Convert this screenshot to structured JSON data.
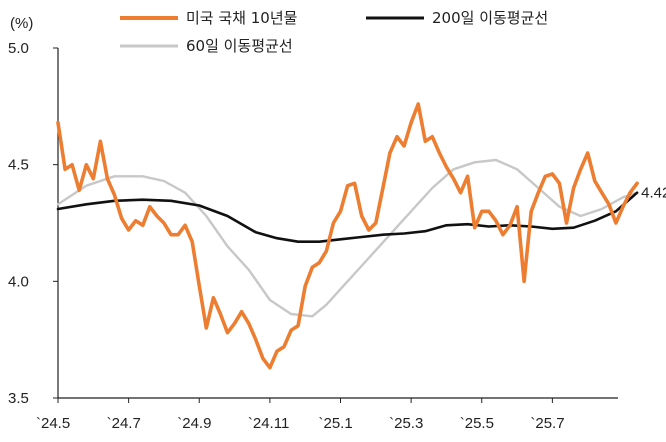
{
  "chart_data": {
    "type": "line",
    "title": "",
    "y_unit_label": "(%)",
    "ylim": [
      3.5,
      5.0
    ],
    "y_ticks": [
      "3.5",
      "4.0",
      "4.5",
      "5.0"
    ],
    "x_tick_labels": [
      "`24.5",
      "`24.7",
      "`24.9",
      "`24.11",
      "`25.1",
      "`25.3",
      "`25.5",
      "`25.7"
    ],
    "grid": false,
    "legend_position": "top",
    "end_value_label": "4.42",
    "series": [
      {
        "name": "미국 국채 10년물",
        "color": "#ED7D31",
        "points": [
          [
            0,
            4.68
          ],
          [
            1,
            4.48
          ],
          [
            2,
            4.5
          ],
          [
            3,
            4.39
          ],
          [
            4,
            4.5
          ],
          [
            5,
            4.44
          ],
          [
            6,
            4.6
          ],
          [
            7,
            4.44
          ],
          [
            8,
            4.37
          ],
          [
            9,
            4.27
          ],
          [
            10,
            4.22
          ],
          [
            11,
            4.26
          ],
          [
            12,
            4.24
          ],
          [
            13,
            4.32
          ],
          [
            14,
            4.28
          ],
          [
            15,
            4.25
          ],
          [
            16,
            4.2
          ],
          [
            17,
            4.2
          ],
          [
            18,
            4.24
          ],
          [
            19,
            4.17
          ],
          [
            20,
            3.98
          ],
          [
            21,
            3.8
          ],
          [
            22,
            3.93
          ],
          [
            23,
            3.86
          ],
          [
            24,
            3.78
          ],
          [
            25,
            3.82
          ],
          [
            26,
            3.87
          ],
          [
            27,
            3.82
          ],
          [
            28,
            3.75
          ],
          [
            29,
            3.67
          ],
          [
            30,
            3.63
          ],
          [
            31,
            3.7
          ],
          [
            32,
            3.72
          ],
          [
            33,
            3.79
          ],
          [
            34,
            3.81
          ],
          [
            35,
            3.98
          ],
          [
            36,
            4.06
          ],
          [
            37,
            4.08
          ],
          [
            38,
            4.13
          ],
          [
            39,
            4.25
          ],
          [
            40,
            4.3
          ],
          [
            41,
            4.41
          ],
          [
            42,
            4.42
          ],
          [
            43,
            4.28
          ],
          [
            44,
            4.22
          ],
          [
            45,
            4.25
          ],
          [
            46,
            4.4
          ],
          [
            47,
            4.55
          ],
          [
            48,
            4.62
          ],
          [
            49,
            4.58
          ],
          [
            50,
            4.68
          ],
          [
            51,
            4.76
          ],
          [
            52,
            4.6
          ],
          [
            53,
            4.62
          ],
          [
            54,
            4.55
          ],
          [
            55,
            4.49
          ],
          [
            56,
            4.44
          ],
          [
            57,
            4.38
          ],
          [
            58,
            4.45
          ],
          [
            59,
            4.23
          ],
          [
            60,
            4.3
          ],
          [
            61,
            4.3
          ],
          [
            62,
            4.26
          ],
          [
            63,
            4.2
          ],
          [
            64,
            4.24
          ],
          [
            65,
            4.32
          ],
          [
            66,
            4.0
          ],
          [
            67,
            4.3
          ],
          [
            68,
            4.38
          ],
          [
            69,
            4.45
          ],
          [
            70,
            4.46
          ],
          [
            71,
            4.42
          ],
          [
            72,
            4.25
          ],
          [
            73,
            4.4
          ],
          [
            74,
            4.48
          ],
          [
            75,
            4.55
          ],
          [
            76,
            4.43
          ],
          [
            77,
            4.38
          ],
          [
            78,
            4.33
          ],
          [
            79,
            4.25
          ],
          [
            80,
            4.32
          ],
          [
            81,
            4.38
          ],
          [
            82,
            4.42
          ]
        ]
      },
      {
        "name": "200일 이동평균선",
        "color": "#111111",
        "points": [
          [
            0,
            4.31
          ],
          [
            4,
            4.33
          ],
          [
            8,
            4.345
          ],
          [
            12,
            4.35
          ],
          [
            16,
            4.345
          ],
          [
            20,
            4.325
          ],
          [
            24,
            4.28
          ],
          [
            28,
            4.21
          ],
          [
            31,
            4.185
          ],
          [
            34,
            4.17
          ],
          [
            37,
            4.17
          ],
          [
            40,
            4.18
          ],
          [
            43,
            4.19
          ],
          [
            46,
            4.2
          ],
          [
            49,
            4.205
          ],
          [
            52,
            4.215
          ],
          [
            55,
            4.24
          ],
          [
            58,
            4.245
          ],
          [
            61,
            4.235
          ],
          [
            64,
            4.24
          ],
          [
            67,
            4.235
          ],
          [
            70,
            4.225
          ],
          [
            73,
            4.23
          ],
          [
            76,
            4.26
          ],
          [
            79,
            4.3
          ],
          [
            82,
            4.38
          ]
        ]
      },
      {
        "name": "60일 이동평균선",
        "color": "#C8C8C8",
        "points": [
          [
            0,
            4.33
          ],
          [
            4,
            4.41
          ],
          [
            8,
            4.45
          ],
          [
            12,
            4.45
          ],
          [
            15,
            4.43
          ],
          [
            18,
            4.38
          ],
          [
            21,
            4.28
          ],
          [
            24,
            4.15
          ],
          [
            27,
            4.05
          ],
          [
            30,
            3.92
          ],
          [
            33,
            3.86
          ],
          [
            36,
            3.85
          ],
          [
            38,
            3.9
          ],
          [
            41,
            4.0
          ],
          [
            44,
            4.1
          ],
          [
            47,
            4.2
          ],
          [
            50,
            4.3
          ],
          [
            53,
            4.4
          ],
          [
            56,
            4.48
          ],
          [
            59,
            4.51
          ],
          [
            62,
            4.52
          ],
          [
            65,
            4.48
          ],
          [
            68,
            4.4
          ],
          [
            71,
            4.32
          ],
          [
            74,
            4.28
          ],
          [
            77,
            4.31
          ],
          [
            80,
            4.36
          ],
          [
            82,
            4.38
          ]
        ]
      }
    ]
  }
}
